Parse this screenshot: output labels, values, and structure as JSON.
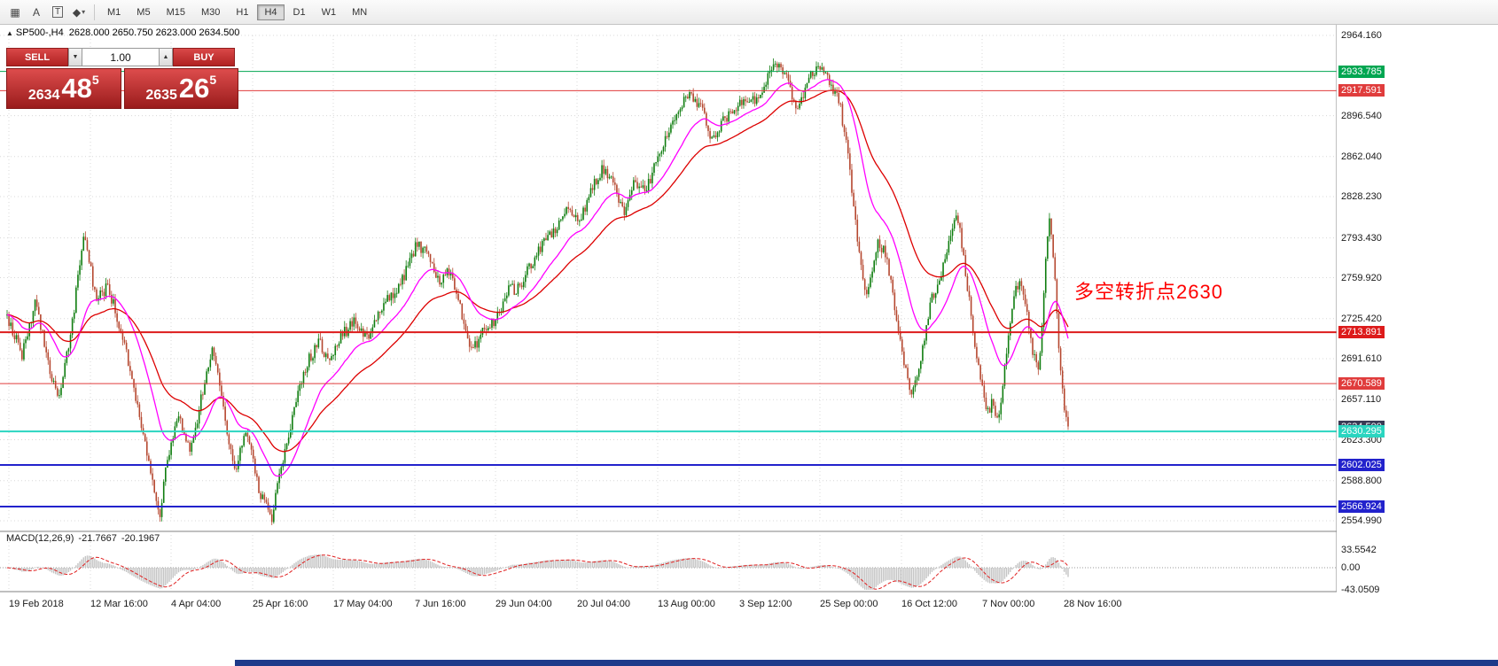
{
  "toolbar": {
    "icons": [
      {
        "name": "chart-grip-icon",
        "glyph": "▦"
      },
      {
        "name": "cursor-tool-icon",
        "glyph": "A"
      },
      {
        "name": "text-tool-icon",
        "glyph": "T",
        "boxed": true
      },
      {
        "name": "draw-tools-icon",
        "glyph": "◆",
        "caret": "▾"
      }
    ],
    "timeframes": [
      "M1",
      "M5",
      "M15",
      "M30",
      "H1",
      "H4",
      "D1",
      "W1",
      "MN"
    ],
    "active_timeframe": "H4"
  },
  "header": {
    "expand_icon": "▲",
    "symbol": "SP500-,H4",
    "ohlc": "2628.000 2650.750 2623.000 2634.500"
  },
  "trade_widget": {
    "sell_label": "SELL",
    "buy_label": "BUY",
    "volume": "1.00",
    "spinner_down": "▼",
    "spinner_up": "▲",
    "sell_price": {
      "prefix": "2634",
      "big": "48",
      "sup": "5"
    },
    "buy_price": {
      "prefix": "2635",
      "big": "26",
      "sup": "5"
    }
  },
  "annotation": {
    "text": "多空转折点2630",
    "color": "#ff0000"
  },
  "indicator": {
    "name": "MACD(12,26,9)",
    "value_main": "-21.7667",
    "value_signal": "-20.1967"
  },
  "chart_data": {
    "type": "candlestick",
    "symbol": "SP500-",
    "timeframe": "H4",
    "ohlc": {
      "open": 2628.0,
      "high": 2650.75,
      "low": 2623.0,
      "close": 2634.5
    },
    "bid_price": 2634.5,
    "y_axis": {
      "top_price": 2964.16,
      "bottom_price": 2554.99,
      "labels": [
        {
          "price": 2964.16,
          "text": "2964.160"
        },
        {
          "price": 2896.54,
          "text": "2896.540"
        },
        {
          "price": 2862.04,
          "text": "2862.040"
        },
        {
          "price": 2828.23,
          "text": "2828.230"
        },
        {
          "price": 2793.43,
          "text": "2793.430"
        },
        {
          "price": 2759.92,
          "text": "2759.920"
        },
        {
          "price": 2725.42,
          "text": "2725.420"
        },
        {
          "price": 2691.61,
          "text": "2691.610"
        },
        {
          "price": 2657.11,
          "text": "2657.110"
        },
        {
          "price": 2623.3,
          "text": "2623.300"
        },
        {
          "price": 2588.8,
          "text": "2588.800"
        },
        {
          "price": 2554.99,
          "text": "2554.990"
        }
      ]
    },
    "levels": [
      {
        "price": 2933.785,
        "text": "2933.785",
        "color": "#00a651",
        "line_width": 1
      },
      {
        "price": 2917.591,
        "text": "2917.591",
        "color": "#e03c3c",
        "line_width": 1
      },
      {
        "price": 2713.891,
        "text": "2713.891",
        "color": "#dd1b1b",
        "line_width": 2
      },
      {
        "price": 2670.589,
        "text": "2670.589",
        "color": "#e03c3c",
        "line_width": 1
      },
      {
        "price": 2634.5,
        "text": "2634.500",
        "color": "#3a3a55",
        "line_width": 0
      },
      {
        "price": 2630.295,
        "text": "2630.295",
        "color": "#2ad5c0",
        "line_width": 2
      },
      {
        "price": 2602.025,
        "text": "2602.025",
        "color": "#2222cc",
        "line_width": 2
      },
      {
        "price": 2566.924,
        "text": "2566.924",
        "color": "#2222cc",
        "line_width": 2
      }
    ],
    "x_axis": [
      "19 Feb 2018",
      "12 Mar 16:00",
      "4 Apr 04:00",
      "25 Apr 16:00",
      "17 May 04:00",
      "7 Jun 16:00",
      "29 Jun 04:00",
      "20 Jul 04:00",
      "13 Aug 00:00",
      "3 Sep 12:00",
      "25 Sep 00:00",
      "16 Oct 12:00",
      "7 Nov 00:00",
      "28 Nov 16:00"
    ],
    "colors": {
      "up": "#0f7d0f",
      "down": "#b5472f",
      "ma_fast": "#ff00ff",
      "ma_slow": "#dd0000",
      "grid": "#d8d8d8"
    },
    "moving_averages": [
      {
        "name": "ma-fast",
        "period": 25,
        "color": "#ff00ff"
      },
      {
        "name": "ma-slow",
        "period": 55,
        "color": "#dd0000"
      }
    ],
    "macd": {
      "params": [
        12,
        26,
        9
      ],
      "value_main": -21.7667,
      "value_signal": -20.1967,
      "axis_labels": [
        {
          "value": 33.5542,
          "text": "33.5542"
        },
        {
          "value": 0,
          "text": "0.00"
        },
        {
          "value": -43.0509,
          "text": "-43.0509"
        }
      ],
      "histogram_color": "#c4c4c4",
      "signal_color": "#e02020"
    },
    "price_path": [
      [
        8,
        2728
      ],
      [
        25,
        2695
      ],
      [
        40,
        2742
      ],
      [
        55,
        2688
      ],
      [
        65,
        2655
      ],
      [
        80,
        2712
      ],
      [
        95,
        2802
      ],
      [
        108,
        2742
      ],
      [
        122,
        2752
      ],
      [
        138,
        2712
      ],
      [
        152,
        2662
      ],
      [
        168,
        2602
      ],
      [
        180,
        2560
      ],
      [
        190,
        2612
      ],
      [
        202,
        2642
      ],
      [
        215,
        2612
      ],
      [
        228,
        2662
      ],
      [
        240,
        2700
      ],
      [
        252,
        2648
      ],
      [
        265,
        2598
      ],
      [
        278,
        2632
      ],
      [
        292,
        2582
      ],
      [
        306,
        2556
      ],
      [
        318,
        2602
      ],
      [
        332,
        2648
      ],
      [
        346,
        2688
      ],
      [
        360,
        2705
      ],
      [
        372,
        2690
      ],
      [
        386,
        2712
      ],
      [
        400,
        2722
      ],
      [
        415,
        2708
      ],
      [
        428,
        2732
      ],
      [
        442,
        2745
      ],
      [
        456,
        2762
      ],
      [
        470,
        2788
      ],
      [
        482,
        2782
      ],
      [
        495,
        2755
      ],
      [
        508,
        2768
      ],
      [
        520,
        2732
      ],
      [
        533,
        2698
      ],
      [
        546,
        2718
      ],
      [
        559,
        2722
      ],
      [
        572,
        2748
      ],
      [
        586,
        2752
      ],
      [
        600,
        2772
      ],
      [
        614,
        2792
      ],
      [
        628,
        2802
      ],
      [
        642,
        2818
      ],
      [
        654,
        2806
      ],
      [
        668,
        2836
      ],
      [
        680,
        2852
      ],
      [
        692,
        2838
      ],
      [
        704,
        2816
      ],
      [
        716,
        2842
      ],
      [
        728,
        2832
      ],
      [
        740,
        2858
      ],
      [
        753,
        2882
      ],
      [
        766,
        2902
      ],
      [
        779,
        2916
      ],
      [
        791,
        2902
      ],
      [
        803,
        2878
      ],
      [
        816,
        2892
      ],
      [
        828,
        2902
      ],
      [
        840,
        2912
      ],
      [
        852,
        2908
      ],
      [
        864,
        2925
      ],
      [
        876,
        2940
      ],
      [
        886,
        2932
      ],
      [
        898,
        2898
      ],
      [
        908,
        2918
      ],
      [
        918,
        2935
      ],
      [
        928,
        2938
      ],
      [
        938,
        2920
      ],
      [
        947,
        2908
      ],
      [
        955,
        2872
      ],
      [
        963,
        2820
      ],
      [
        970,
        2775
      ],
      [
        977,
        2745
      ],
      [
        984,
        2768
      ],
      [
        991,
        2792
      ],
      [
        999,
        2778
      ],
      [
        1006,
        2752
      ],
      [
        1013,
        2718
      ],
      [
        1020,
        2688
      ],
      [
        1028,
        2662
      ],
      [
        1036,
        2682
      ],
      [
        1044,
        2712
      ],
      [
        1051,
        2742
      ],
      [
        1058,
        2756
      ],
      [
        1066,
        2772
      ],
      [
        1073,
        2802
      ],
      [
        1080,
        2812
      ],
      [
        1087,
        2778
      ],
      [
        1094,
        2738
      ],
      [
        1101,
        2698
      ],
      [
        1108,
        2668
      ],
      [
        1114,
        2645
      ],
      [
        1120,
        2658
      ],
      [
        1126,
        2638
      ],
      [
        1133,
        2682
      ],
      [
        1140,
        2722
      ],
      [
        1146,
        2748
      ],
      [
        1152,
        2756
      ],
      [
        1159,
        2728
      ],
      [
        1165,
        2698
      ],
      [
        1172,
        2678
      ],
      [
        1178,
        2752
      ],
      [
        1183,
        2812
      ],
      [
        1189,
        2775
      ],
      [
        1195,
        2698
      ],
      [
        1200,
        2652
      ],
      [
        1205,
        2634.5
      ]
    ]
  }
}
